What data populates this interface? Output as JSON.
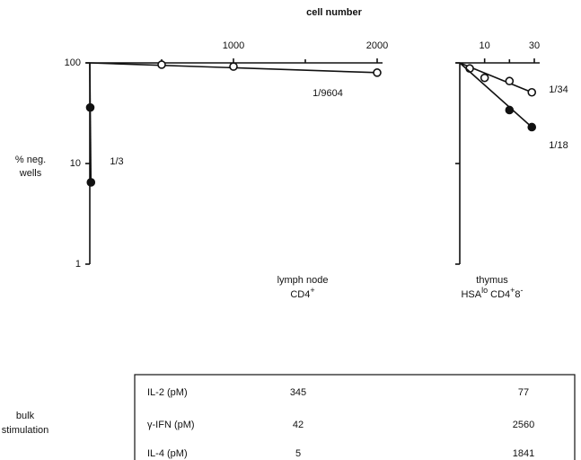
{
  "xlabel": "cell number",
  "ylabel_lines": [
    "% neg.",
    "wells"
  ],
  "chart_data": [
    {
      "type": "scatter",
      "yscale": "log",
      "xlim": [
        0,
        2000
      ],
      "ylim": [
        1,
        100
      ],
      "xticks": [
        1000,
        2000
      ],
      "xminorticks": [
        500,
        1500
      ],
      "yticks": [
        1,
        10,
        100
      ],
      "ytick_labels": true,
      "group_label": [
        [
          {
            "t": "lymph node"
          }
        ],
        [
          {
            "t": "CD4"
          },
          {
            "t": "+",
            "sup": true
          }
        ]
      ],
      "series": [
        {
          "label": "1/9604",
          "color": "#ffffff",
          "x": [
            500,
            1000,
            2000
          ],
          "values": [
            96,
            92,
            80
          ]
        },
        {
          "label": "1/3",
          "color": "#111111",
          "x": [
            3,
            8
          ],
          "values": [
            36,
            6.5
          ]
        }
      ]
    },
    {
      "type": "scatter",
      "yscale": "log",
      "xlim": [
        0,
        30
      ],
      "ylim": [
        1,
        100
      ],
      "xticks": [
        10,
        30
      ],
      "xminorticks": [
        20
      ],
      "yticks": [
        1,
        10,
        100
      ],
      "ytick_labels": false,
      "group_label": [
        [
          {
            "t": "thymus"
          }
        ],
        [
          {
            "t": "HSA"
          },
          {
            "t": "lo",
            "sup": true
          },
          {
            "t": " CD4"
          },
          {
            "t": "+",
            "sup": true
          },
          {
            "t": "8"
          },
          {
            "t": "-",
            "sup": true
          }
        ]
      ],
      "series": [
        {
          "label": "1/34",
          "color": "#ffffff",
          "x": [
            4,
            10,
            20,
            29
          ],
          "values": [
            88,
            71,
            66,
            51
          ]
        },
        {
          "label": "1/18",
          "color": "#111111",
          "x": [
            20,
            29
          ],
          "values": [
            34,
            23
          ]
        }
      ]
    }
  ],
  "table": {
    "row_group": [
      "bulk",
      "stimulation"
    ],
    "rows": [
      [
        "IL-2 (pM)",
        "345",
        "77"
      ],
      [
        "γ-IFN (pM)",
        "42",
        "2560"
      ],
      [
        "IL-4 (pM)",
        "5",
        "1841"
      ]
    ]
  }
}
